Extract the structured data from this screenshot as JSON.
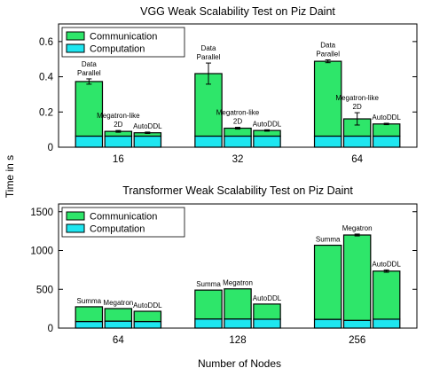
{
  "figure": {
    "ylabel": "Time in s",
    "xlabel": "Number of Nodes"
  },
  "chart_data": [
    {
      "type": "bar",
      "stacked": true,
      "title": "VGG Weak Scalability Test on Piz Daint",
      "groups": [
        "16",
        "32",
        "64"
      ],
      "methods": [
        "Data Parallel",
        "Megatron-like 2D",
        "AutoDDL"
      ],
      "series": [
        {
          "name": "Communication",
          "color": "#2ee66a",
          "values": [
            [
              0.31,
              0.027,
              0.019
            ],
            [
              0.355,
              0.045,
              0.032
            ],
            [
              0.425,
              0.098,
              0.069
            ]
          ]
        },
        {
          "name": "Computation",
          "color": "#1ee6f0",
          "values": [
            [
              0.063,
              0.063,
              0.063
            ],
            [
              0.063,
              0.063,
              0.063
            ],
            [
              0.063,
              0.063,
              0.063
            ]
          ]
        }
      ],
      "error": [
        [
          0.015,
          0.005,
          0.004
        ],
        [
          0.06,
          0.005,
          0.004
        ],
        [
          0.008,
          0.035,
          0.004
        ]
      ],
      "labels": [
        [
          [
            "Data",
            "Parallel"
          ],
          [
            "Megatron-like",
            "2D"
          ],
          [
            "AutoDDL"
          ]
        ],
        [
          [
            "Data",
            "Parallel"
          ],
          [
            "Megatron-like",
            "2D"
          ],
          [
            "AutoDDL"
          ]
        ],
        [
          [
            "Data",
            "Parallel"
          ],
          [
            "Megatron-like",
            "2D"
          ],
          [
            "AutoDDL"
          ]
        ]
      ],
      "yticks": [
        "0",
        "0.2",
        "0.4",
        "0.6"
      ],
      "ylim": [
        0,
        0.7
      ],
      "legend_position": "top-left"
    },
    {
      "type": "bar",
      "stacked": true,
      "title": "Transformer Weak Scalability Test on Piz Daint",
      "groups": [
        "64",
        "128",
        "256"
      ],
      "methods": [
        "Summa",
        "Megatron",
        "AutoDDL"
      ],
      "series": [
        {
          "name": "Communication",
          "color": "#2ee66a",
          "values": [
            [
              190,
              162,
              132
            ],
            [
              372,
              388,
              195
            ],
            [
              955,
              1100,
              620
            ]
          ]
        },
        {
          "name": "Computation",
          "color": "#1ee6f0",
          "values": [
            [
              85,
              90,
              85
            ],
            [
              118,
              118,
              115
            ],
            [
              113,
              100,
              115
            ]
          ]
        }
      ],
      "error": [
        [
          0,
          0,
          0
        ],
        [
          0,
          0,
          0
        ],
        [
          0,
          12,
          15
        ]
      ],
      "labels": [
        [
          [
            "Summa"
          ],
          [
            "Megatron"
          ],
          [
            "AutoDDL"
          ]
        ],
        [
          [
            "Summa"
          ],
          [
            "Megatron"
          ],
          [
            "AutoDDL"
          ]
        ],
        [
          [
            "Summa"
          ],
          [
            "Megatron"
          ],
          [
            "AutoDDL"
          ]
        ]
      ],
      "yticks": [
        "0",
        "500",
        "1000",
        "1500"
      ],
      "ylim": [
        0,
        1600
      ],
      "legend_position": "top-left"
    }
  ]
}
